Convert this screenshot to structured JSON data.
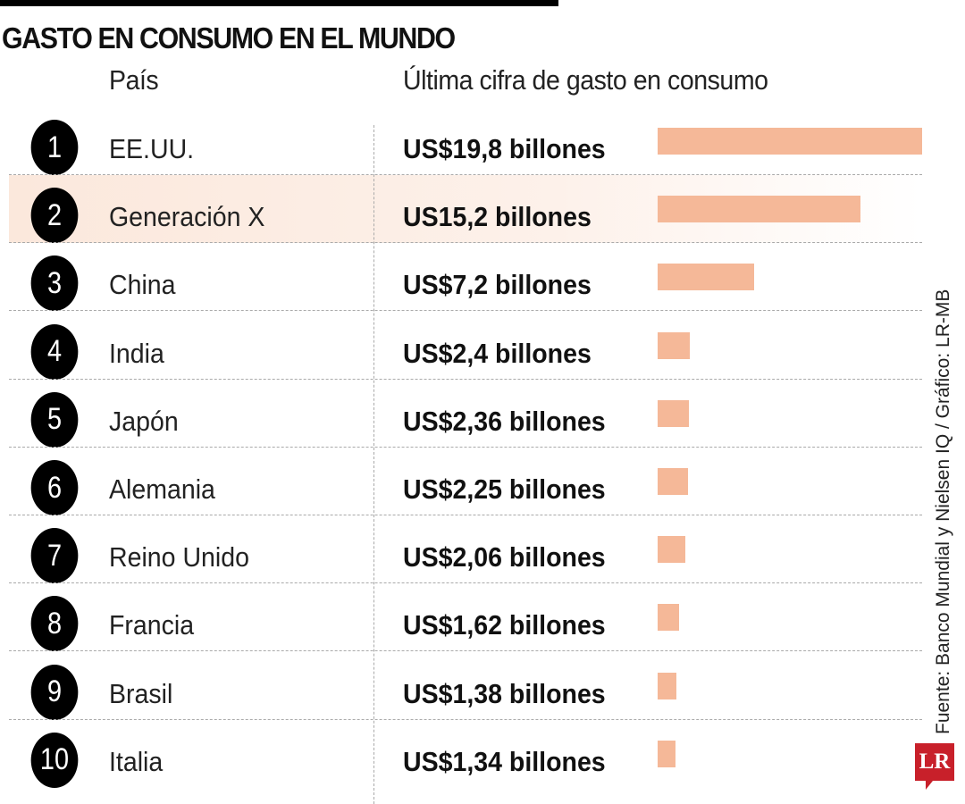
{
  "title": "GASTO EN CONSUMO EN EL MUNDO",
  "headers": {
    "country": "País",
    "value": "Última cifra de gasto en consumo"
  },
  "source": "Fuente: Banco Mundial y Nielsen IQ / Gráfico: LR-MB",
  "logo": "LR",
  "colors": {
    "bar": "#f5b898",
    "highlight": "#fbe8dc",
    "logo": "#c8202a"
  },
  "chart_data": {
    "type": "bar",
    "orientation": "horizontal",
    "title": "GASTO EN CONSUMO EN EL MUNDO",
    "highlighted": "Generación X",
    "rows": [
      {
        "rank": "1",
        "country": "EE.UU.",
        "label": "US$19,8 billones",
        "value": 19.8
      },
      {
        "rank": "2",
        "country": "Generación X",
        "label": "US15,2 billones",
        "value": 15.2
      },
      {
        "rank": "3",
        "country": "China",
        "label": "US$7,2 billones",
        "value": 7.2
      },
      {
        "rank": "4",
        "country": "India",
        "label": "US$2,4 billones",
        "value": 2.4
      },
      {
        "rank": "5",
        "country": "Japón",
        "label": "US$2,36 billones",
        "value": 2.36
      },
      {
        "rank": "6",
        "country": "Alemania",
        "label": "US$2,25 billones",
        "value": 2.25
      },
      {
        "rank": "7",
        "country": "Reino Unido",
        "label": "US$2,06 billones",
        "value": 2.06
      },
      {
        "rank": "8",
        "country": "Francia",
        "label": "US$1,62 billones",
        "value": 1.62
      },
      {
        "rank": "9",
        "country": "Brasil",
        "label": "US$1,38 billones",
        "value": 1.38
      },
      {
        "rank": "10",
        "country": "Italia",
        "label": "US$1,34 billones",
        "value": 1.34
      }
    ]
  }
}
